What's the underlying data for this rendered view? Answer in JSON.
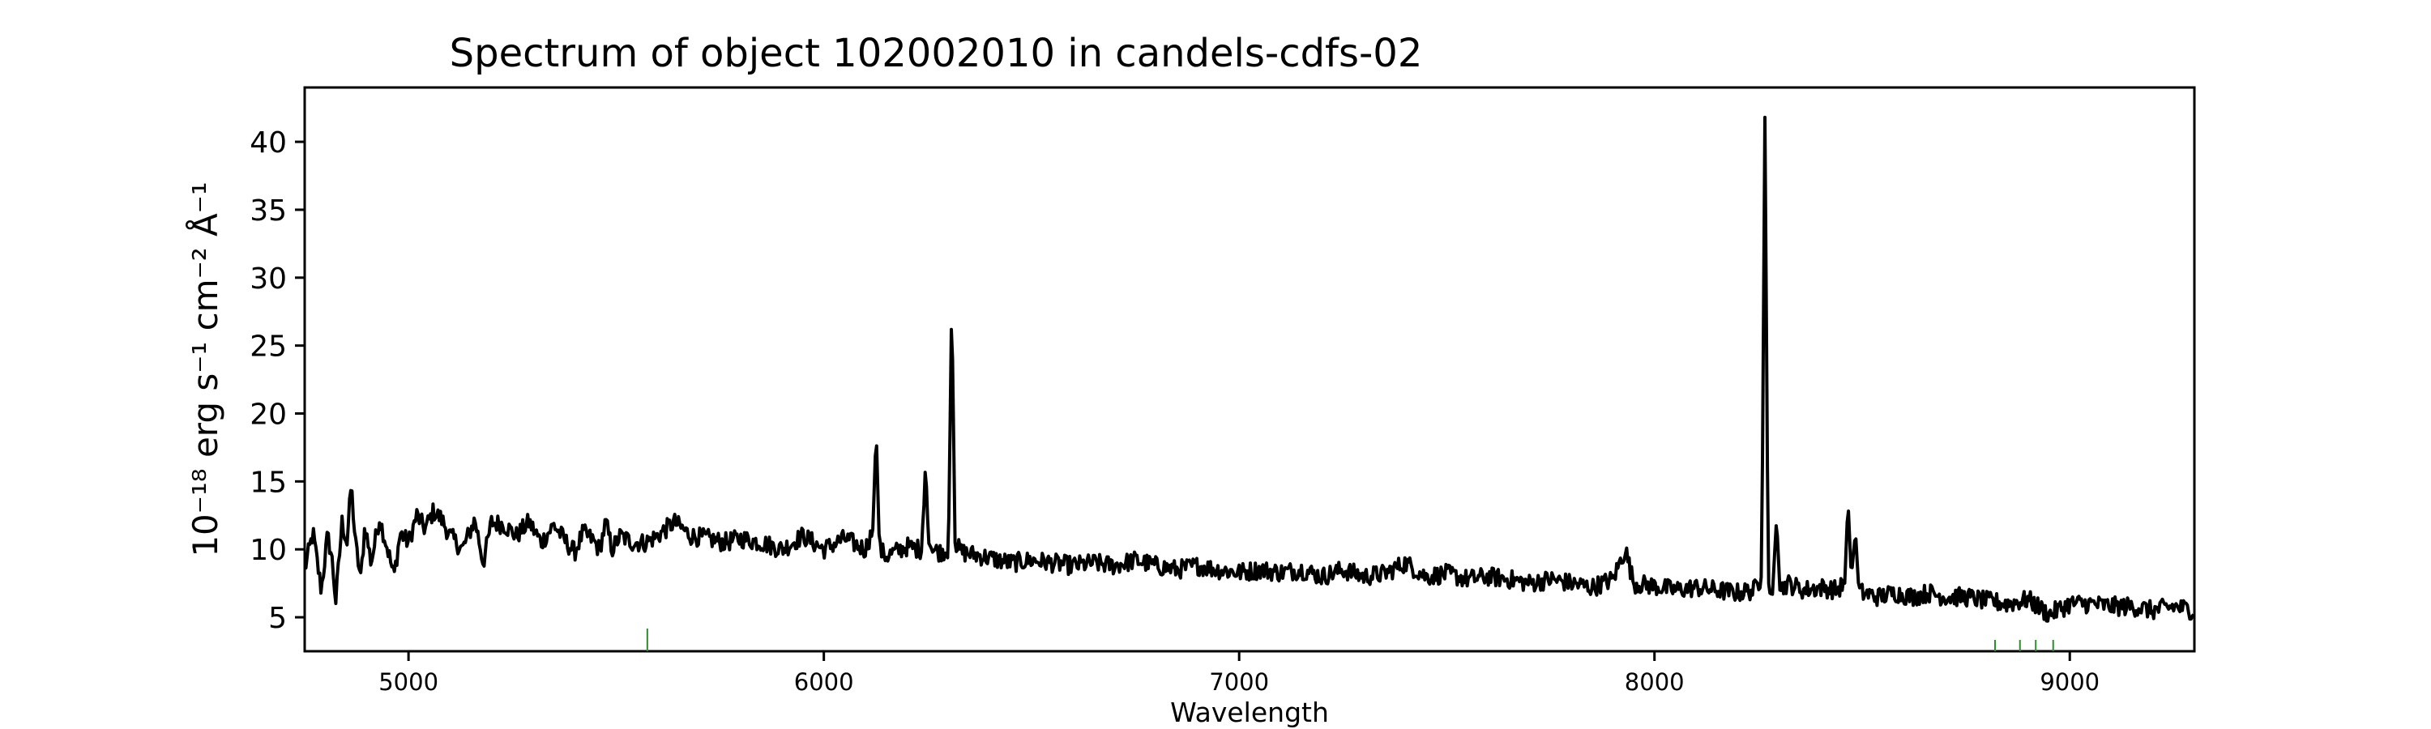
{
  "chart_data": {
    "type": "line",
    "title": "Spectrum of object 102002010 in candels-cdfs-02",
    "xlabel": "Wavelength",
    "ylabel": "10⁻¹⁸ erg s⁻¹ cm⁻² Å⁻¹",
    "xlim": [
      4750,
      9300
    ],
    "ylim": [
      2.5,
      44
    ],
    "xticks": [
      5000,
      6000,
      7000,
      8000,
      9000
    ],
    "yticks": [
      5,
      10,
      15,
      20,
      25,
      30,
      35,
      40
    ],
    "grid": false,
    "series": [
      {
        "color": "#000000",
        "x": [
          4750,
          4770,
          4790,
          4805,
          4815,
          4825,
          4840,
          4852,
          4862,
          4872,
          4885,
          4895,
          4910,
          4930,
          4950,
          4965,
          4980,
          5000,
          5020,
          5040,
          5060,
          5080,
          5100,
          5130,
          5160,
          5180,
          5200,
          5230,
          5260,
          5290,
          5320,
          5350,
          5380,
          5400,
          5420,
          5440,
          5460,
          5475,
          5490,
          5510,
          5540,
          5570,
          5600,
          5640,
          5680,
          5720,
          5760,
          5800,
          5850,
          5900,
          5950,
          6000,
          6050,
          6100,
          6118,
          6126,
          6134,
          6150,
          6200,
          6235,
          6245,
          6252,
          6260,
          6280,
          6300,
          6308,
          6316,
          6330,
          6380,
          6450,
          6500,
          6550,
          6600,
          6650,
          6700,
          6750,
          6800,
          6850,
          6900,
          6950,
          7000,
          7050,
          7100,
          7150,
          7200,
          7250,
          7300,
          7350,
          7400,
          7450,
          7500,
          7550,
          7600,
          7650,
          7700,
          7750,
          7800,
          7850,
          7900,
          7930,
          7950,
          8000,
          8050,
          8100,
          8150,
          8200,
          8240,
          8258,
          8266,
          8274,
          8285,
          8294,
          8302,
          8320,
          8360,
          8400,
          8440,
          8458,
          8466,
          8474,
          8484,
          8492,
          8500,
          8540,
          8580,
          8620,
          8660,
          8700,
          8750,
          8800,
          8850,
          8900,
          8950,
          9000,
          9050,
          9100,
          9150,
          9200,
          9250,
          9300
        ],
        "y": [
          8.5,
          11.2,
          7.0,
          11.0,
          9.5,
          6.2,
          12.0,
          10.5,
          14.8,
          10.5,
          7.8,
          11.8,
          9.0,
          12.3,
          10.0,
          8.0,
          11.2,
          10.5,
          12.5,
          11.5,
          12.8,
          12.2,
          11.0,
          10.0,
          12.2,
          9.0,
          12.0,
          11.8,
          11.0,
          12.0,
          10.5,
          11.8,
          10.5,
          9.8,
          11.2,
          10.8,
          10.0,
          12.0,
          10.0,
          11.0,
          10.5,
          10.5,
          11.0,
          12.0,
          11.0,
          10.8,
          10.5,
          10.8,
          10.5,
          10.0,
          11.0,
          10.0,
          10.8,
          10.0,
          11.5,
          18.7,
          10.0,
          9.5,
          10.2,
          10.0,
          16.3,
          10.5,
          10.0,
          9.8,
          10.0,
          28.5,
          10.5,
          9.8,
          9.5,
          9.0,
          9.2,
          9.0,
          8.8,
          9.0,
          8.8,
          9.2,
          8.8,
          8.5,
          8.8,
          8.5,
          8.3,
          8.5,
          8.3,
          8.5,
          8.0,
          8.5,
          8.0,
          8.2,
          9.0,
          8.0,
          8.2,
          7.8,
          8.0,
          7.8,
          7.5,
          7.8,
          7.5,
          7.2,
          7.8,
          10.0,
          7.5,
          7.3,
          7.0,
          7.2,
          7.0,
          6.8,
          7.0,
          8.0,
          41.8,
          7.5,
          7.2,
          12.3,
          7.0,
          7.5,
          7.0,
          7.2,
          7.0,
          7.5,
          13.5,
          8.0,
          11.3,
          7.0,
          6.8,
          6.5,
          6.8,
          6.5,
          6.8,
          6.5,
          6.5,
          6.2,
          6.0,
          6.3,
          5.2,
          6.0,
          6.0,
          5.8,
          5.8,
          5.5,
          5.8,
          5.5
        ]
      }
    ],
    "markers": {
      "color": "#2e8b2e",
      "x": [
        5575,
        8820,
        8880,
        8918,
        8960
      ]
    }
  }
}
